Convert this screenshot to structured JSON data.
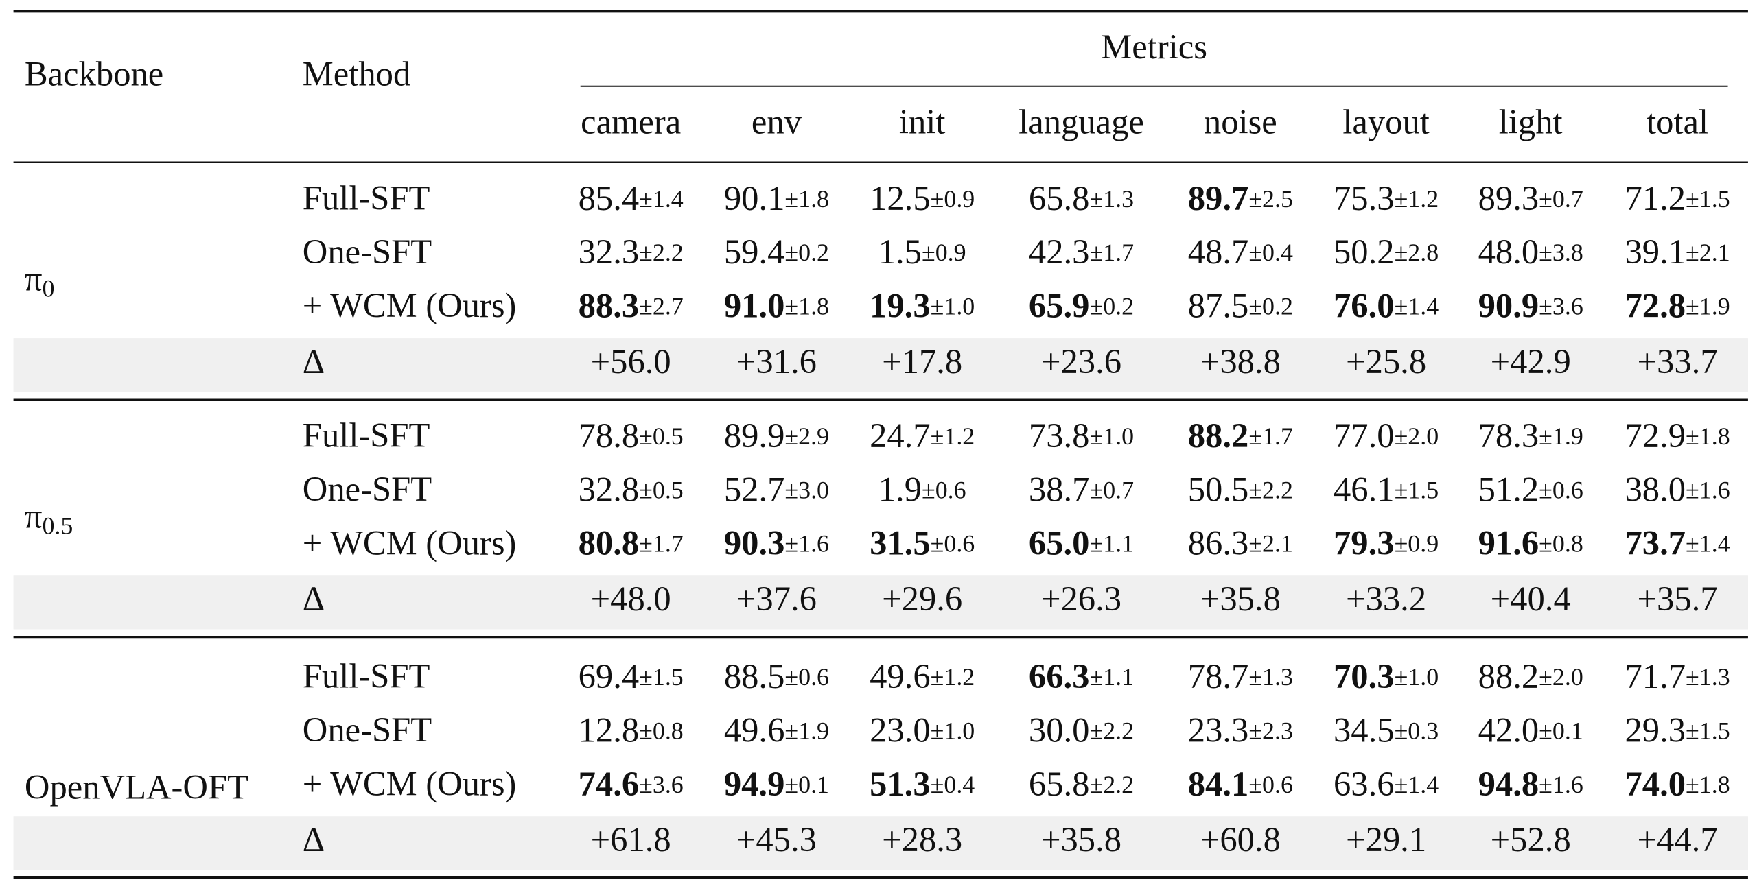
{
  "header": {
    "backbone": "Backbone",
    "method": "Method",
    "metrics": "Metrics",
    "columns": [
      "camera",
      "env",
      "init",
      "language",
      "noise",
      "layout",
      "light",
      "total"
    ]
  },
  "groups": [
    {
      "backbone": {
        "symbol": "π",
        "sub": "0"
      },
      "rows": [
        {
          "method": "Full-SFT",
          "cells": [
            {
              "value": "85.4",
              "std": "±1.4"
            },
            {
              "value": "90.1",
              "std": "±1.8"
            },
            {
              "value": "12.5",
              "std": "±0.9"
            },
            {
              "value": "65.8",
              "std": "±1.3"
            },
            {
              "value": "89.7",
              "std": "±2.5",
              "bold": true
            },
            {
              "value": "75.3",
              "std": "±1.2"
            },
            {
              "value": "89.3",
              "std": "±0.7"
            },
            {
              "value": "71.2",
              "std": "±1.5"
            }
          ]
        },
        {
          "method": "One-SFT",
          "cells": [
            {
              "value": "32.3",
              "std": "±2.2"
            },
            {
              "value": "59.4",
              "std": "±0.2"
            },
            {
              "value": "1.5",
              "std": "±0.9"
            },
            {
              "value": "42.3",
              "std": "±1.7"
            },
            {
              "value": "48.7",
              "std": "±0.4"
            },
            {
              "value": "50.2",
              "std": "±2.8"
            },
            {
              "value": "48.0",
              "std": "±3.8"
            },
            {
              "value": "39.1",
              "std": "±2.1"
            }
          ]
        },
        {
          "method": "+ WCM (Ours)",
          "cells": [
            {
              "value": "88.3",
              "std": "±2.7",
              "bold": true
            },
            {
              "value": "91.0",
              "std": "±1.8",
              "bold": true
            },
            {
              "value": "19.3",
              "std": "±1.0",
              "bold": true
            },
            {
              "value": "65.9",
              "std": "±0.2",
              "bold": true
            },
            {
              "value": "87.5",
              "std": "±0.2"
            },
            {
              "value": "76.0",
              "std": "±1.4",
              "bold": true
            },
            {
              "value": "90.9",
              "std": "±3.6",
              "bold": true
            },
            {
              "value": "72.8",
              "std": "±1.9",
              "bold": true
            }
          ]
        }
      ],
      "delta": {
        "label": "Δ",
        "values": [
          "+56.0",
          "+31.6",
          "+17.8",
          "+23.6",
          "+38.8",
          "+25.8",
          "+42.9",
          "+33.7"
        ]
      }
    },
    {
      "backbone": {
        "symbol": "π",
        "sub": "0.5"
      },
      "rows": [
        {
          "method": "Full-SFT",
          "cells": [
            {
              "value": "78.8",
              "std": "±0.5"
            },
            {
              "value": "89.9",
              "std": "±2.9"
            },
            {
              "value": "24.7",
              "std": "±1.2"
            },
            {
              "value": "73.8",
              "std": "±1.0"
            },
            {
              "value": "88.2",
              "std": "±1.7",
              "bold": true
            },
            {
              "value": "77.0",
              "std": "±2.0"
            },
            {
              "value": "78.3",
              "std": "±1.9"
            },
            {
              "value": "72.9",
              "std": "±1.8"
            }
          ]
        },
        {
          "method": "One-SFT",
          "cells": [
            {
              "value": "32.8",
              "std": "±0.5"
            },
            {
              "value": "52.7",
              "std": "±3.0"
            },
            {
              "value": "1.9",
              "std": "±0.6"
            },
            {
              "value": "38.7",
              "std": "±0.7"
            },
            {
              "value": "50.5",
              "std": "±2.2"
            },
            {
              "value": "46.1",
              "std": "±1.5"
            },
            {
              "value": "51.2",
              "std": "±0.6"
            },
            {
              "value": "38.0",
              "std": "±1.6"
            }
          ]
        },
        {
          "method": "+ WCM (Ours)",
          "cells": [
            {
              "value": "80.8",
              "std": "±1.7",
              "bold": true
            },
            {
              "value": "90.3",
              "std": "±1.6",
              "bold": true
            },
            {
              "value": "31.5",
              "std": "±0.6",
              "bold": true
            },
            {
              "value": "65.0",
              "std": "±1.1",
              "bold": true
            },
            {
              "value": "86.3",
              "std": "±2.1"
            },
            {
              "value": "79.3",
              "std": "±0.9",
              "bold": true
            },
            {
              "value": "91.6",
              "std": "±0.8",
              "bold": true
            },
            {
              "value": "73.7",
              "std": "±1.4",
              "bold": true
            }
          ]
        }
      ],
      "delta": {
        "label": "Δ",
        "values": [
          "+48.0",
          "+37.6",
          "+29.6",
          "+26.3",
          "+35.8",
          "+33.2",
          "+40.4",
          "+35.7"
        ]
      }
    },
    {
      "backbone": {
        "symbol": "OpenVLA-OFT"
      },
      "rows": [
        {
          "method": "Full-SFT",
          "cells": [
            {
              "value": "69.4",
              "std": "±1.5"
            },
            {
              "value": "88.5",
              "std": "±0.6"
            },
            {
              "value": "49.6",
              "std": "±1.2"
            },
            {
              "value": "66.3",
              "std": "±1.1",
              "bold": true
            },
            {
              "value": "78.7",
              "std": "±1.3"
            },
            {
              "value": "70.3",
              "std": "±1.0",
              "bold": true
            },
            {
              "value": "88.2",
              "std": "±2.0"
            },
            {
              "value": "71.7",
              "std": "±1.3"
            }
          ]
        },
        {
          "method": "One-SFT",
          "cells": [
            {
              "value": "12.8",
              "std": "±0.8"
            },
            {
              "value": "49.6",
              "std": "±1.9"
            },
            {
              "value": "23.0",
              "std": "±1.0"
            },
            {
              "value": "30.0",
              "std": "±2.2"
            },
            {
              "value": "23.3",
              "std": "±2.3"
            },
            {
              "value": "34.5",
              "std": "±0.3"
            },
            {
              "value": "42.0",
              "std": "±0.1"
            },
            {
              "value": "29.3",
              "std": "±1.5"
            }
          ]
        },
        {
          "method": "+ WCM (Ours)",
          "cells": [
            {
              "value": "74.6",
              "std": "±3.6",
              "bold": true
            },
            {
              "value": "94.9",
              "std": "±0.1",
              "bold": true
            },
            {
              "value": "51.3",
              "std": "±0.4",
              "bold": true
            },
            {
              "value": "65.8",
              "std": "±2.2"
            },
            {
              "value": "84.1",
              "std": "±0.6",
              "bold": true
            },
            {
              "value": "63.6",
              "std": "±1.4"
            },
            {
              "value": "94.8",
              "std": "±1.6",
              "bold": true
            },
            {
              "value": "74.0",
              "std": "±1.8",
              "bold": true
            }
          ]
        }
      ],
      "delta": {
        "label": "Δ",
        "values": [
          "+61.8",
          "+45.3",
          "+28.3",
          "+35.8",
          "+60.8",
          "+29.1",
          "+52.8",
          "+44.7"
        ]
      }
    }
  ]
}
